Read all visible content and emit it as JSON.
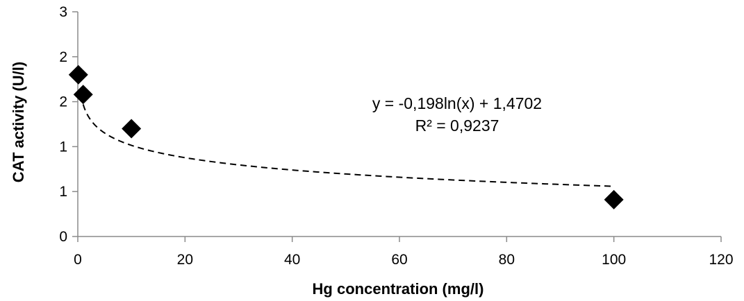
{
  "chart_data": {
    "type": "scatter",
    "xlabel": "Hg concentration (mg/l)",
    "ylabel": "CAT activity (U/l)",
    "xlim": [
      0,
      120
    ],
    "ylim": [
      0,
      2.5
    ],
    "x_ticks": [
      0,
      20,
      40,
      60,
      80,
      100,
      120
    ],
    "y_ticks": [
      0,
      0.5,
      1,
      1.5,
      2,
      2.5
    ],
    "y_tick_labels": [
      "0",
      "1",
      "1",
      "2",
      "2",
      "3"
    ],
    "grid": false,
    "legend": "none",
    "series": [
      {
        "marker": "diamond",
        "color": "#000000",
        "x": [
          0.1,
          1,
          10,
          100
        ],
        "y": [
          1.8,
          1.58,
          1.2,
          0.41
        ]
      }
    ],
    "trendline": {
      "type": "logarithmic",
      "a": -0.198,
      "b": 1.4702,
      "x_range": [
        1,
        100
      ],
      "style": "dashed",
      "color": "#000000"
    },
    "annotations": [
      "y = -0,198ln(x) + 1,4702",
      "R² = 0,9237"
    ]
  }
}
